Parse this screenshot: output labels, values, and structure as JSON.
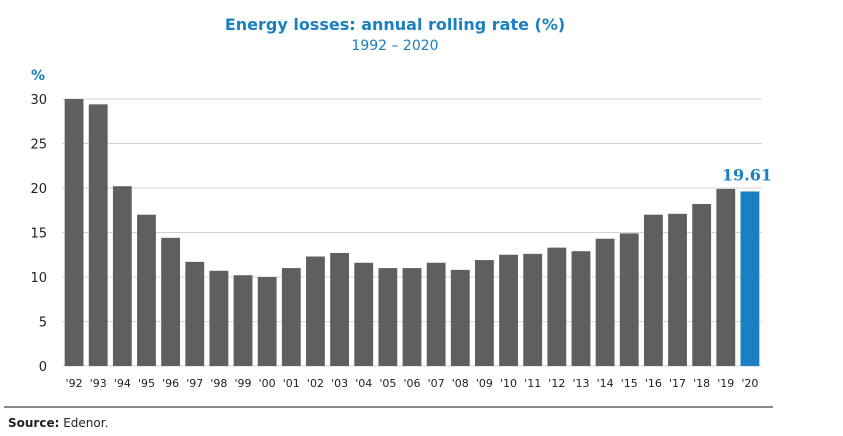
{
  "chart_data": {
    "type": "bar",
    "title": "Energy losses: annual rolling rate (%)",
    "subtitle": "1992 – 2020",
    "ylabel": "%",
    "xlabel": "",
    "ylim": [
      0,
      30
    ],
    "yticks": [
      0,
      5,
      10,
      15,
      20,
      25,
      30
    ],
    "grid": true,
    "legend": "none",
    "categories": [
      "'92",
      "'93",
      "'94",
      "'95",
      "'96",
      "'97",
      "'98",
      "'99",
      "'00",
      "'01",
      "'02",
      "'03",
      "'04",
      "'05",
      "'06",
      "'07",
      "'08",
      "'09",
      "'10",
      "'11",
      "'12",
      "'13",
      "'14",
      "'15",
      "'16",
      "'17",
      "'18",
      "'19",
      "'20"
    ],
    "values": [
      30.0,
      29.4,
      20.2,
      17.0,
      14.4,
      11.7,
      10.7,
      10.2,
      10.0,
      11.0,
      12.3,
      12.7,
      11.6,
      11.0,
      11.0,
      11.6,
      10.8,
      11.9,
      12.5,
      12.6,
      13.3,
      12.9,
      14.3,
      14.9,
      17.0,
      17.1,
      18.2,
      19.9,
      19.61
    ],
    "highlight": {
      "category": "'20",
      "label": "19.61"
    },
    "colors": {
      "bar": "#5f5f5f",
      "highlight": "#1a80c0",
      "grid": "#d4d4d4",
      "axis_text": "#222222"
    }
  },
  "source": {
    "label": "Source:",
    "text": " Edenor."
  }
}
